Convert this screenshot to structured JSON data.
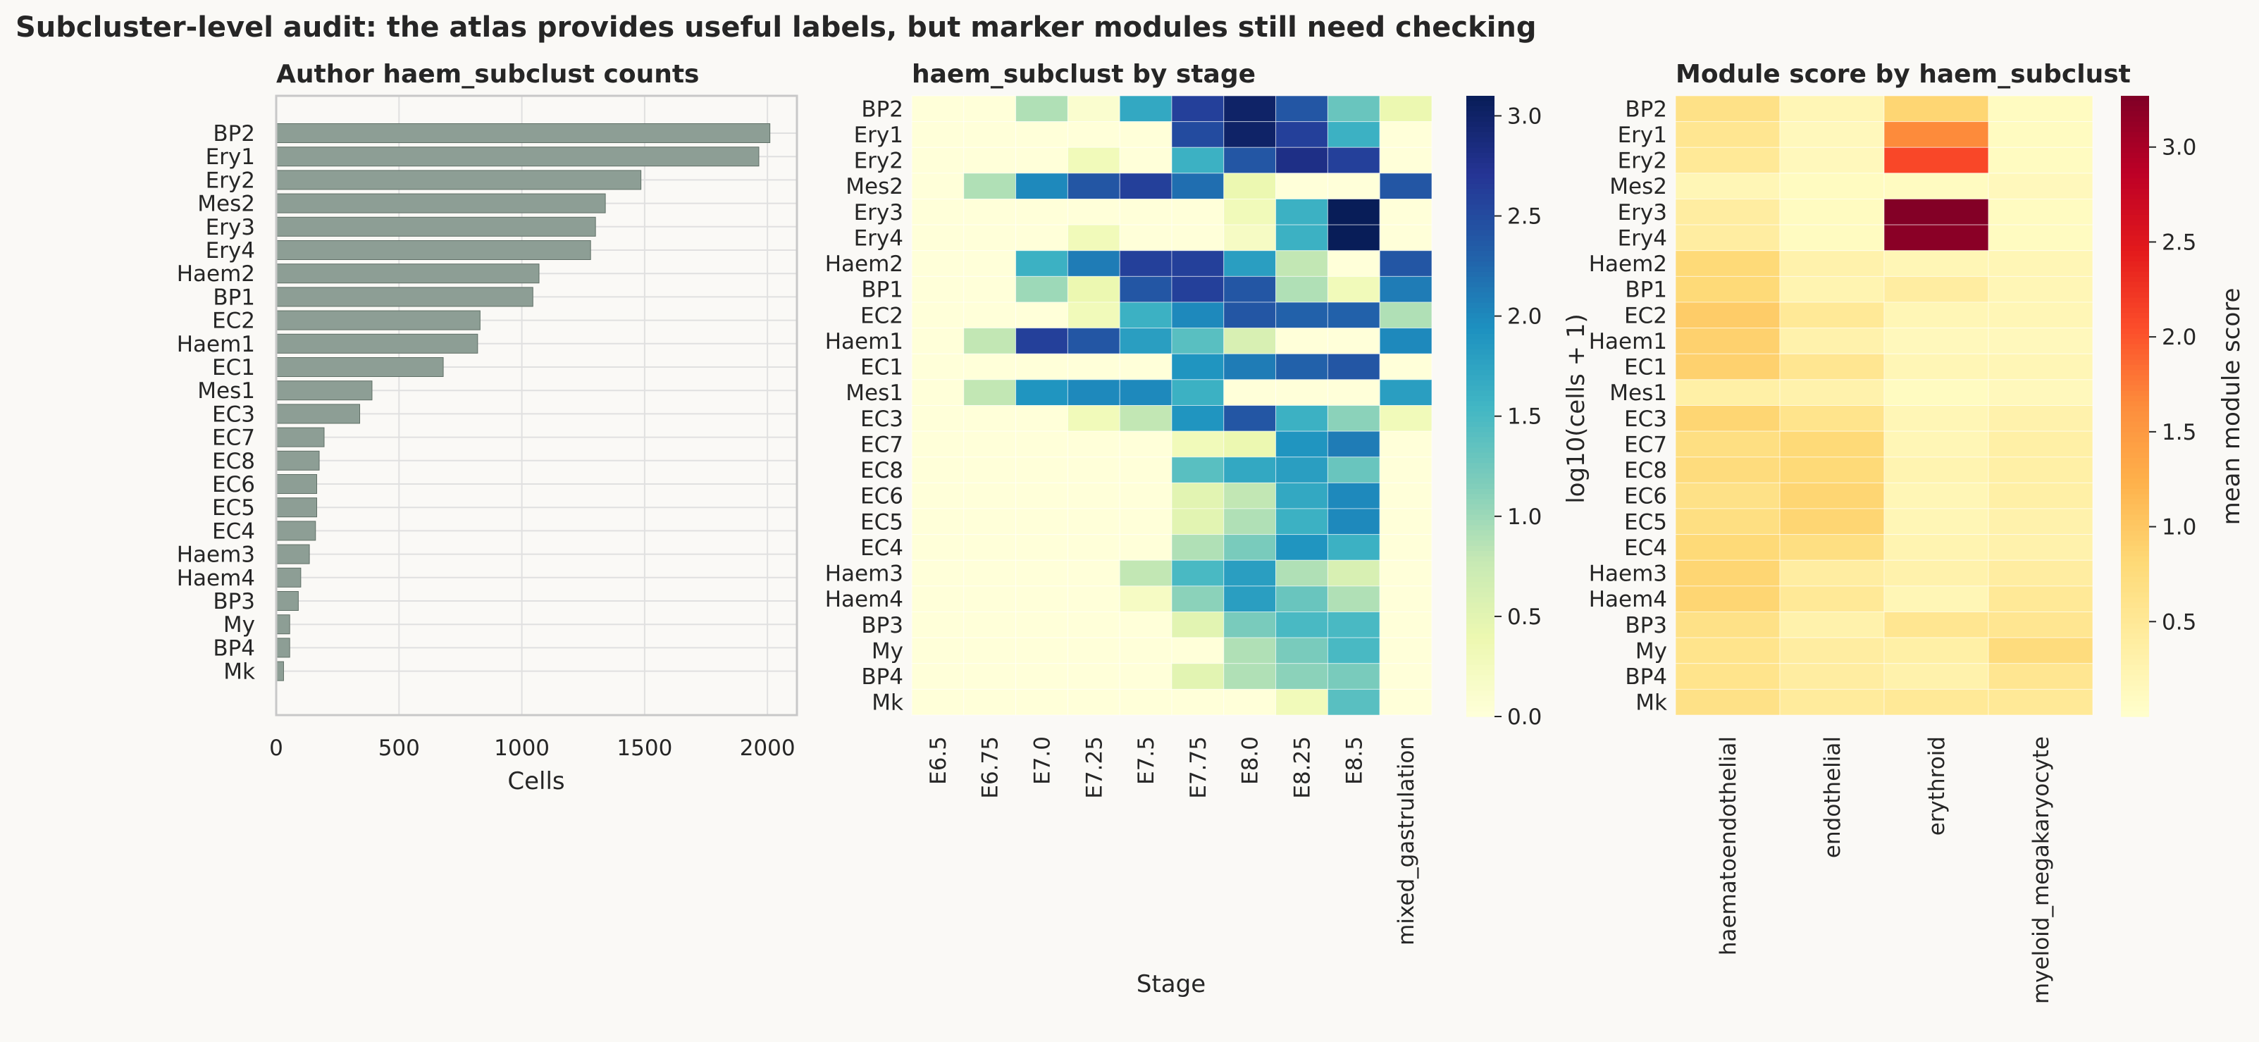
{
  "title": "Subcluster-level audit: the atlas provides useful labels, but marker modules still need checking",
  "colors": {
    "bar_fill": "#8d9e95",
    "bar_edge": "#5f6f66",
    "background": "#faf9f6",
    "grid": "#e0e0e0",
    "stage_cmap": "YlGnBu",
    "module_cmap": "YlOrRd"
  },
  "chart_data": [
    {
      "type": "bar",
      "orientation": "horizontal",
      "title": "Author haem_subclust counts",
      "xlabel": "Cells",
      "ylabel": "",
      "categories": [
        "BP2",
        "Ery1",
        "Ery2",
        "Mes2",
        "Ery3",
        "Ery4",
        "Haem2",
        "BP1",
        "EC2",
        "Haem1",
        "EC1",
        "Mes1",
        "EC3",
        "EC7",
        "EC8",
        "EC6",
        "EC5",
        "EC4",
        "Haem3",
        "Haem4",
        "BP3",
        "My",
        "BP4",
        "Mk"
      ],
      "values": [
        2010,
        1965,
        1485,
        1340,
        1300,
        1280,
        1070,
        1045,
        830,
        820,
        680,
        390,
        340,
        195,
        175,
        165,
        165,
        160,
        135,
        100,
        90,
        55,
        55,
        30
      ],
      "xlim": [
        0,
        2120
      ],
      "xticks": [
        "0",
        "500",
        "1000",
        "1500",
        "2000"
      ],
      "xtick_values": [
        0,
        500,
        1000,
        1500,
        2000
      ],
      "grid": true
    },
    {
      "type": "heatmap",
      "title": "haem_subclust by stage",
      "xlabel": "Stage",
      "ylabel": "",
      "rows": [
        "BP2",
        "Ery1",
        "Ery2",
        "Mes2",
        "Ery3",
        "Ery4",
        "Haem2",
        "BP1",
        "EC2",
        "Haem1",
        "EC1",
        "Mes1",
        "EC3",
        "EC7",
        "EC8",
        "EC6",
        "EC5",
        "EC4",
        "Haem3",
        "Haem4",
        "BP3",
        "My",
        "BP4",
        "Mk"
      ],
      "columns": [
        "E6.5",
        "E6.75",
        "E7.0",
        "E7.25",
        "E7.5",
        "E7.75",
        "E8.0",
        "E8.25",
        "E8.5",
        "mixed_gastrulation"
      ],
      "values": [
        [
          0,
          0,
          0.9,
          0.1,
          1.7,
          2.6,
          3.0,
          2.4,
          1.3,
          0.4
        ],
        [
          0,
          0,
          0,
          0,
          0,
          2.5,
          3.0,
          2.6,
          1.6,
          0
        ],
        [
          0,
          0,
          0,
          0.3,
          0,
          1.6,
          2.4,
          2.8,
          2.6,
          0
        ],
        [
          0,
          0.9,
          2.0,
          2.4,
          2.6,
          2.2,
          0.4,
          0,
          0,
          2.4
        ],
        [
          0,
          0,
          0,
          0,
          0,
          0,
          0.3,
          1.6,
          3.1,
          0
        ],
        [
          0,
          0,
          0,
          0.3,
          0,
          0,
          0.2,
          1.6,
          3.1,
          0
        ],
        [
          0,
          0,
          1.6,
          2.1,
          2.6,
          2.6,
          1.8,
          0.8,
          0,
          2.4
        ],
        [
          0,
          0,
          1.0,
          0.4,
          2.4,
          2.6,
          2.4,
          0.9,
          0.3,
          2.1
        ],
        [
          0,
          0,
          0,
          0.3,
          1.6,
          2.0,
          2.4,
          2.3,
          2.3,
          0.9
        ],
        [
          0,
          0.8,
          2.6,
          2.4,
          1.8,
          1.4,
          0.6,
          0,
          0,
          2.0
        ],
        [
          0,
          0,
          0,
          0,
          0,
          1.9,
          2.1,
          2.3,
          2.4,
          0
        ],
        [
          0,
          0.8,
          1.9,
          2.0,
          2.0,
          1.6,
          0,
          0,
          0,
          1.8
        ],
        [
          0,
          0,
          0,
          0.3,
          0.8,
          1.9,
          2.4,
          1.6,
          1.1,
          0.3
        ],
        [
          0,
          0,
          0,
          0,
          0,
          0.3,
          0.4,
          1.9,
          2.1,
          0
        ],
        [
          0,
          0,
          0,
          0,
          0,
          1.4,
          1.7,
          1.8,
          1.3,
          0
        ],
        [
          0,
          0,
          0,
          0,
          0,
          0.5,
          0.8,
          1.7,
          2.0,
          0
        ],
        [
          0,
          0,
          0,
          0,
          0,
          0.5,
          0.9,
          1.6,
          2.0,
          0
        ],
        [
          0,
          0,
          0,
          0,
          0,
          0.9,
          1.2,
          1.9,
          1.6,
          0
        ],
        [
          0,
          0,
          0,
          0,
          0.8,
          1.5,
          1.8,
          0.9,
          0.6,
          0
        ],
        [
          0,
          0,
          0,
          0,
          0.2,
          1.1,
          1.8,
          1.3,
          0.9,
          0
        ],
        [
          0,
          0,
          0,
          0,
          0,
          0.5,
          1.2,
          1.5,
          1.5,
          0
        ],
        [
          0,
          0,
          0,
          0,
          0,
          0,
          0.9,
          1.2,
          1.5,
          0
        ],
        [
          0,
          0,
          0,
          0,
          0,
          0.5,
          0.9,
          1.1,
          1.2,
          0
        ],
        [
          0,
          0,
          0,
          0,
          0,
          0,
          0,
          0.3,
          1.4,
          0
        ]
      ],
      "colorbar": {
        "label": "log10(cells + 1)",
        "min": 0,
        "max": 3.1,
        "ticks": [
          "0.0",
          "0.5",
          "1.0",
          "1.5",
          "2.0",
          "2.5",
          "3.0"
        ],
        "tick_values": [
          0,
          0.5,
          1.0,
          1.5,
          2.0,
          2.5,
          3.0
        ]
      }
    },
    {
      "type": "heatmap",
      "title": "Module score by haem_subclust",
      "xlabel": "",
      "ylabel": "",
      "rows": [
        "BP2",
        "Ery1",
        "Ery2",
        "Mes2",
        "Ery3",
        "Ery4",
        "Haem2",
        "BP1",
        "EC2",
        "Haem1",
        "EC1",
        "Mes1",
        "EC3",
        "EC7",
        "EC8",
        "EC6",
        "EC5",
        "EC4",
        "Haem3",
        "Haem4",
        "BP3",
        "My",
        "BP4",
        "Mk"
      ],
      "columns": [
        "haematoendothelial",
        "endothelial",
        "erythroid",
        "myeloid_megakaryocyte"
      ],
      "values": [
        [
          0.65,
          0.2,
          0.85,
          0.1
        ],
        [
          0.55,
          0.15,
          1.65,
          0.1
        ],
        [
          0.5,
          0.15,
          2.1,
          0.1
        ],
        [
          0.2,
          0.1,
          0.1,
          0.15
        ],
        [
          0.4,
          0.1,
          3.25,
          0.1
        ],
        [
          0.4,
          0.1,
          3.2,
          0.1
        ],
        [
          0.8,
          0.3,
          0.2,
          0.2
        ],
        [
          0.8,
          0.25,
          0.4,
          0.2
        ],
        [
          0.95,
          0.5,
          0.2,
          0.2
        ],
        [
          0.9,
          0.3,
          0.15,
          0.15
        ],
        [
          0.9,
          0.55,
          0.2,
          0.2
        ],
        [
          0.35,
          0.3,
          0.1,
          0.15
        ],
        [
          0.85,
          0.6,
          0.2,
          0.3
        ],
        [
          0.7,
          0.8,
          0.2,
          0.35
        ],
        [
          0.75,
          0.8,
          0.25,
          0.35
        ],
        [
          0.65,
          0.85,
          0.2,
          0.35
        ],
        [
          0.7,
          0.85,
          0.2,
          0.3
        ],
        [
          0.8,
          0.7,
          0.25,
          0.3
        ],
        [
          0.85,
          0.4,
          0.3,
          0.4
        ],
        [
          0.85,
          0.5,
          0.2,
          0.5
        ],
        [
          0.65,
          0.3,
          0.55,
          0.55
        ],
        [
          0.6,
          0.4,
          0.35,
          0.75
        ],
        [
          0.6,
          0.4,
          0.3,
          0.55
        ],
        [
          0.65,
          0.45,
          0.5,
          0.5
        ]
      ],
      "colorbar": {
        "label": "mean module score",
        "min": 0,
        "max": 3.27,
        "ticks": [
          "0.5",
          "1.0",
          "1.5",
          "2.0",
          "2.5",
          "3.0"
        ],
        "tick_values": [
          0.5,
          1.0,
          1.5,
          2.0,
          2.5,
          3.0
        ]
      }
    }
  ]
}
